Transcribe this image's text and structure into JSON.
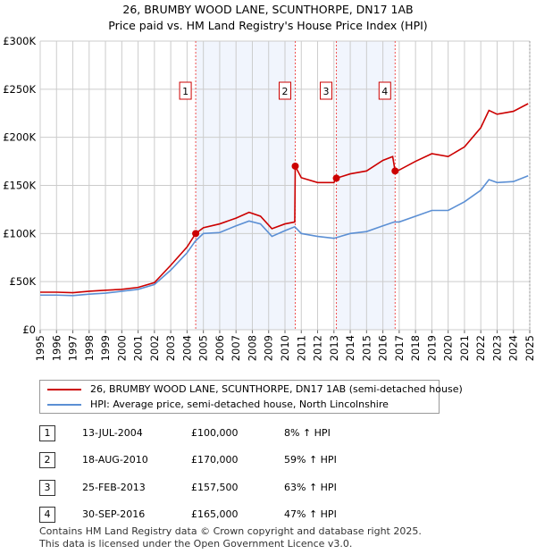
{
  "title": "26, BRUMBY WOOD LANE, SCUNTHORPE, DN17 1AB",
  "subtitle": "Price paid vs. HM Land Registry's House Price Index (HPI)",
  "chart_data": {
    "type": "line",
    "ylim": [
      0,
      300000
    ],
    "xlim": [
      1995,
      2025
    ],
    "yticks": [
      0,
      50000,
      100000,
      150000,
      200000,
      250000,
      300000
    ],
    "ytick_labels": [
      "£0",
      "£50K",
      "£100K",
      "£150K",
      "£200K",
      "£250K",
      "£300K"
    ],
    "xticks": [
      "1995",
      "1996",
      "1997",
      "1998",
      "1999",
      "2000",
      "2001",
      "2002",
      "2003",
      "2004",
      "2005",
      "2006",
      "2007",
      "2008",
      "2009",
      "2010",
      "2011",
      "2012",
      "2013",
      "2014",
      "2015",
      "2016",
      "2017",
      "2018",
      "2019",
      "2020",
      "2021",
      "2022",
      "2023",
      "2024",
      "2025"
    ],
    "grid": true,
    "series": [
      {
        "name": "26, BRUMBY WOOD LANE, SCUNTHORPE, DN17 1AB (semi-detached house)",
        "color": "#cc0000",
        "x": [
          1995,
          1996,
          1997,
          1998,
          1999,
          2000,
          2001,
          2002,
          2003,
          2004,
          2004.53,
          2005,
          2006,
          2007,
          2007.8,
          2008.5,
          2009.2,
          2010,
          2010.6,
          2010.63,
          2011,
          2012,
          2013,
          2013.15,
          2014,
          2015,
          2016,
          2016.6,
          2016.75,
          2017,
          2018,
          2019,
          2020,
          2021,
          2022,
          2022.5,
          2023,
          2024,
          2024.9
        ],
        "y": [
          39000,
          39000,
          38500,
          40000,
          41000,
          42000,
          44000,
          49000,
          67000,
          86000,
          100000,
          106000,
          110000,
          116000,
          122000,
          118000,
          105000,
          110000,
          112000,
          170000,
          158000,
          153000,
          153000,
          157500,
          162000,
          165000,
          176000,
          180000,
          165000,
          166000,
          175000,
          183000,
          180000,
          190000,
          210000,
          228000,
          224000,
          227000,
          235000
        ]
      },
      {
        "name": "HPI: Average price, semi-detached house, North Lincolnshire",
        "color": "#5b8fd4",
        "x": [
          1995,
          1996,
          1997,
          1998,
          1999,
          2000,
          2001,
          2002,
          2003,
          2004,
          2004.5,
          2005,
          2006,
          2007,
          2007.8,
          2008.5,
          2009.2,
          2010,
          2010.6,
          2011,
          2012,
          2013,
          2014,
          2015,
          2016,
          2016.7,
          2017,
          2018,
          2019,
          2020,
          2021,
          2022,
          2022.5,
          2023,
          2024,
          2024.9
        ],
        "y": [
          36000,
          36000,
          35500,
          37000,
          38000,
          40000,
          42000,
          47000,
          62000,
          80000,
          92000,
          100000,
          101000,
          108000,
          113000,
          110000,
          97000,
          103000,
          107000,
          100000,
          97000,
          95000,
          100000,
          102000,
          108000,
          112000,
          112000,
          118000,
          124000,
          124000,
          133000,
          145000,
          156000,
          153000,
          154000,
          160000
        ]
      }
    ],
    "sales": [
      {
        "n": "1",
        "x": 2004.53,
        "y": 100000
      },
      {
        "n": "2",
        "x": 2010.63,
        "y": 170000
      },
      {
        "n": "3",
        "x": 2013.15,
        "y": 157500
      },
      {
        "n": "4",
        "x": 2016.75,
        "y": 165000
      }
    ],
    "shaded": [
      [
        2004.53,
        2010.63
      ],
      [
        2013.15,
        2016.75
      ]
    ]
  },
  "legend": [
    "26, BRUMBY WOOD LANE, SCUNTHORPE, DN17 1AB (semi-detached house)",
    "HPI: Average price, semi-detached house, North Lincolnshire"
  ],
  "table": [
    {
      "n": "1",
      "date": "13-JUL-2004",
      "price": "£100,000",
      "hpi": "8% ↑ HPI"
    },
    {
      "n": "2",
      "date": "18-AUG-2010",
      "price": "£170,000",
      "hpi": "59% ↑ HPI"
    },
    {
      "n": "3",
      "date": "25-FEB-2013",
      "price": "£157,500",
      "hpi": "63% ↑ HPI"
    },
    {
      "n": "4",
      "date": "30-SEP-2016",
      "price": "£165,000",
      "hpi": "47% ↑ HPI"
    }
  ],
  "footer": [
    "Contains HM Land Registry data © Crown copyright and database right 2025.",
    "This data is licensed under the Open Government Licence v3.0."
  ]
}
